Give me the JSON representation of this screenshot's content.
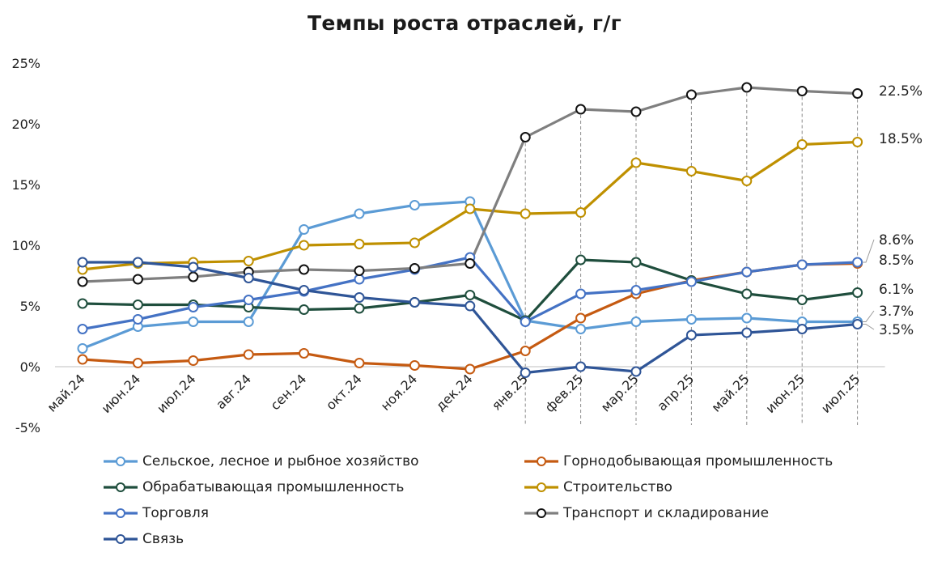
{
  "chart_data": {
    "type": "line",
    "title": "Темпы роста отраслей, г/г",
    "categories": [
      "май.24",
      "июн.24",
      "июл.24",
      "авг.24",
      "сен.24",
      "окт.24",
      "ноя.24",
      "дек.24",
      "янв.25",
      "фев.25",
      "мар.25",
      "апр.25",
      "май.25",
      "июн.25",
      "июл.25"
    ],
    "ylim": [
      -5,
      25
    ],
    "yticks": [
      -5,
      0,
      5,
      10,
      15,
      20,
      25
    ],
    "ytick_labels": [
      "-5%",
      "0%",
      "5%",
      "10%",
      "15%",
      "20%",
      "25%"
    ],
    "grid": false,
    "legend_position": "bottom",
    "series": [
      {
        "name": "Сельское, лесное и рыбное хозяйство",
        "color": "#5B9BD5",
        "values": [
          1.5,
          3.3,
          3.7,
          3.7,
          11.3,
          12.6,
          13.3,
          13.6,
          3.8,
          3.1,
          3.7,
          3.9,
          4.0,
          3.7,
          3.7
        ]
      },
      {
        "name": "Горнодобывающая промышленность",
        "color": "#C55A11",
        "values": [
          0.6,
          0.3,
          0.5,
          1.0,
          1.1,
          0.3,
          0.1,
          -0.2,
          1.3,
          4.0,
          6.0,
          7.1,
          7.8,
          8.4,
          8.5
        ]
      },
      {
        "name": "Обрабатывающая промышленность",
        "color": "#1F4E3D",
        "values": [
          5.2,
          5.1,
          5.1,
          4.9,
          4.7,
          4.8,
          5.3,
          5.9,
          3.8,
          8.8,
          8.6,
          7.1,
          6.0,
          5.5,
          6.1
        ]
      },
      {
        "name": "Строительство",
        "color": "#BF9000",
        "values": [
          8.0,
          8.5,
          8.6,
          8.7,
          10.0,
          10.1,
          10.2,
          13.0,
          12.6,
          12.7,
          16.8,
          16.1,
          15.3,
          18.3,
          18.5
        ]
      },
      {
        "name": "Торговля",
        "color": "#4472C4",
        "values": [
          3.1,
          3.9,
          4.9,
          5.5,
          6.2,
          7.2,
          8.0,
          9.0,
          3.7,
          6.0,
          6.3,
          7.0,
          7.8,
          8.4,
          8.6
        ]
      },
      {
        "name": "Транспорт и складирование",
        "color": "#7F7F7F",
        "marker_stroke": "#111111",
        "values": [
          7.0,
          7.2,
          7.4,
          7.8,
          8.0,
          7.9,
          8.1,
          8.5,
          18.9,
          21.2,
          21.0,
          22.4,
          23.0,
          22.7,
          22.5
        ]
      },
      {
        "name": "Связь",
        "color": "#2F5597",
        "values": [
          8.6,
          8.6,
          8.2,
          7.3,
          6.3,
          5.7,
          5.3,
          5.0,
          -0.5,
          0.0,
          -0.4,
          2.6,
          2.8,
          3.1,
          3.5
        ]
      }
    ],
    "end_labels": [
      "22.5%",
      "18.5%",
      "8.6%",
      "8.5%",
      "6.1%",
      "3.7%",
      "3.5%"
    ],
    "dashed_drop_lines_from": 8
  }
}
